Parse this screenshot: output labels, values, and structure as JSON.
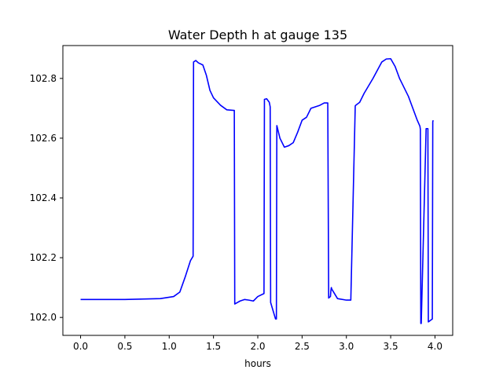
{
  "chart_data": {
    "type": "line",
    "title": "Water Depth h at gauge 135",
    "xlabel": "hours",
    "ylabel": "",
    "xlim": [
      -0.2,
      4.2
    ],
    "ylim": [
      101.94,
      102.91
    ],
    "x_ticks": [
      0.0,
      0.5,
      1.0,
      1.5,
      2.0,
      2.5,
      3.0,
      3.5,
      4.0
    ],
    "x_tick_labels": [
      "0.0",
      "0.5",
      "1.0",
      "1.5",
      "2.0",
      "2.5",
      "3.0",
      "3.5",
      "4.0"
    ],
    "y_ticks": [
      102.0,
      102.2,
      102.4,
      102.6,
      102.8
    ],
    "y_tick_labels": [
      "102.0",
      "102.2",
      "102.4",
      "102.6",
      "102.8"
    ],
    "grid": false,
    "legend": "none",
    "series": [
      {
        "color": "#0000ff",
        "x": [
          0.0,
          0.5,
          0.9,
          1.05,
          1.12,
          1.18,
          1.24,
          1.27,
          1.275,
          1.3,
          1.33,
          1.38,
          1.42,
          1.46,
          1.5,
          1.58,
          1.65,
          1.73,
          1.735,
          1.74,
          1.8,
          1.85,
          1.9,
          1.95,
          2.0,
          2.07,
          2.075,
          2.1,
          2.13,
          2.14,
          2.145,
          2.2,
          2.21,
          2.215,
          2.25,
          2.3,
          2.35,
          2.4,
          2.45,
          2.5,
          2.55,
          2.6,
          2.65,
          2.7,
          2.75,
          2.79,
          2.8,
          2.82,
          2.825,
          2.83,
          2.835,
          2.9,
          3.0,
          3.05,
          3.1,
          3.105,
          3.15,
          3.2,
          3.3,
          3.4,
          3.45,
          3.5,
          3.55,
          3.6,
          3.7,
          3.8,
          3.83,
          3.835,
          3.84,
          3.845,
          3.9,
          3.92,
          3.925,
          3.97,
          3.975,
          3.98
        ],
        "y": [
          102.06,
          102.06,
          102.063,
          102.07,
          102.085,
          102.135,
          102.19,
          102.205,
          102.855,
          102.86,
          102.852,
          102.845,
          102.81,
          102.76,
          102.735,
          102.71,
          102.695,
          102.693,
          102.693,
          102.045,
          102.055,
          102.06,
          102.058,
          102.055,
          102.07,
          102.08,
          102.73,
          102.732,
          102.72,
          102.705,
          102.05,
          101.995,
          101.995,
          102.642,
          102.6,
          102.57,
          102.575,
          102.585,
          102.62,
          102.66,
          102.67,
          102.7,
          102.705,
          102.71,
          102.718,
          102.718,
          102.065,
          102.07,
          102.09,
          102.1,
          102.095,
          102.063,
          102.058,
          102.058,
          102.708,
          102.71,
          102.72,
          102.75,
          102.8,
          102.855,
          102.865,
          102.866,
          102.84,
          102.8,
          102.74,
          102.66,
          102.64,
          102.63,
          101.98,
          101.98,
          102.632,
          102.632,
          101.985,
          101.995,
          102.655,
          102.66
        ]
      }
    ]
  }
}
